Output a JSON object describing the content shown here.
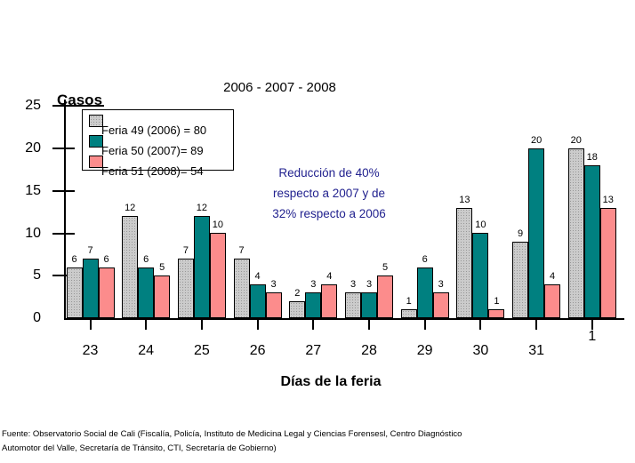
{
  "title": "2006 - 2007 - 2008",
  "y_axis_label": "Casos",
  "x_axis_label": "Días de la feria",
  "annotation": {
    "color": "#22228f",
    "lines": [
      "Reducción de 40%",
      "respecto a 2007 y de",
      "32% respecto a 2006"
    ]
  },
  "legend": {
    "items": [
      {
        "label": "Feria 49 (2006) = 80",
        "color": "#cbcbcb"
      },
      {
        "label": "Feria 50 (2007)= 89",
        "color": "#008080"
      },
      {
        "label": "Feria 51 (2008)= 54",
        "color": "#fc8c8c"
      }
    ]
  },
  "footer": {
    "line1": "Fuente: Observatorio Social de Cali (Fiscalía, Policía, Instituto de Medicina Legal y Ciencias Forensesl, Centro Diagnóstico",
    "line2": "Automotor del Valle, Secretaría de Tránsito, CTI, Secretaría de Gobierno)"
  },
  "chart_data": {
    "type": "bar",
    "title": "2006 - 2007 - 2008",
    "xlabel": "Días de la feria",
    "ylabel": "Casos",
    "categories": [
      "23",
      "24",
      "25",
      "26",
      "27",
      "28",
      "29",
      "30",
      "31",
      "1"
    ],
    "series": [
      {
        "name": "Feria 49 (2006) = 80",
        "color": "#cbcbcb",
        "values": [
          6,
          12,
          7,
          7,
          2,
          3,
          1,
          13,
          9,
          20
        ]
      },
      {
        "name": "Feria 50 (2007)= 89",
        "color": "#008080",
        "values": [
          7,
          6,
          12,
          4,
          3,
          3,
          6,
          10,
          20,
          18
        ]
      },
      {
        "name": "Feria 51 (2008)= 54",
        "color": "#fc8c8c",
        "values": [
          6,
          5,
          10,
          3,
          4,
          5,
          3,
          1,
          4,
          13
        ]
      }
    ],
    "series_totals": [
      80,
      89,
      54
    ],
    "y_ticks": [
      0,
      5,
      10,
      15,
      20,
      25
    ],
    "ylim": [
      0,
      26
    ],
    "grid": false,
    "legend_position": "top-left",
    "bar_value_labels": true
  }
}
